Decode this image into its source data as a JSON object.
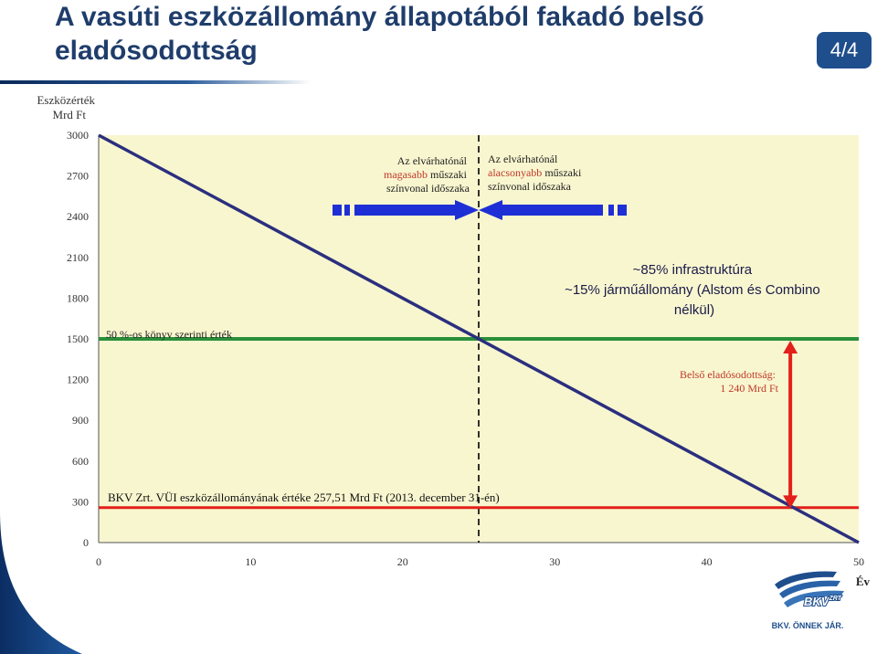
{
  "slide": {
    "title_line1": "A vasúti eszközállomány állapotából fakadó belső",
    "title_line2": "eladósodottság",
    "page": "4/4"
  },
  "colors": {
    "plot_bg": "#f8f6cf",
    "depreciation_line": "#2b2f7e",
    "book_value_line": "#2a8f3a",
    "asset_value_line": "#e3201b",
    "arrow_blue": "#1f2fd6",
    "highlight_red": "#e3201b",
    "logo_blue": "#1f4e8c"
  },
  "chart_data": {
    "type": "line",
    "title": "",
    "ylabel_line1": "Eszközérték",
    "ylabel_line2": "Mrd Ft",
    "xlabel": "Év",
    "xlim": [
      0,
      50
    ],
    "ylim": [
      0,
      3000
    ],
    "xticks": [
      0,
      10,
      20,
      30,
      40,
      50
    ],
    "yticks": [
      0,
      300,
      600,
      900,
      1200,
      1500,
      1800,
      2100,
      2400,
      2700,
      3000
    ],
    "grid": false,
    "series": [
      {
        "key": "depreciation",
        "x": [
          0,
          50
        ],
        "y": [
          3000,
          0
        ]
      },
      {
        "key": "book_value_50pct",
        "x": [
          0,
          50
        ],
        "y": [
          1500,
          1500
        ]
      },
      {
        "key": "asset_value",
        "x": [
          0,
          50
        ],
        "y": [
          257.51,
          257.51
        ]
      }
    ],
    "divider_x": 25,
    "internal_debt": {
      "x": 45.5,
      "y_from": 1500,
      "y_to": 240
    },
    "annotations": {
      "higher_period_1": "Az elvárhatónál",
      "higher_period_2": "magasabb",
      "higher_period_3": " műszaki",
      "higher_period_4": "színvonal időszaka",
      "lower_period_1": "Az elvárhatónál",
      "lower_period_2": "alacsonyabb",
      "lower_period_3": " műszaki",
      "lower_period_4": "színvonal időszaka",
      "share_1": "~85% infrastruktúra",
      "share_2": "~15% járműállomány (Alstom és Combino",
      "share_3": "nélkül)",
      "book_value_label": "50 %-os könyv szerinti érték",
      "debt_1": "Belső eladósodottság:",
      "debt_2": "1 240 Mrd Ft",
      "asset_label": "BKV Zrt. VÜI eszközállományának értéke 257,51 Mrd Ft (2013. december 31-én)"
    }
  },
  "logo": {
    "mark": "BKV",
    "mark_sup": "ZRT",
    "slogan": "BKV. ÖNNEK JÁR."
  }
}
